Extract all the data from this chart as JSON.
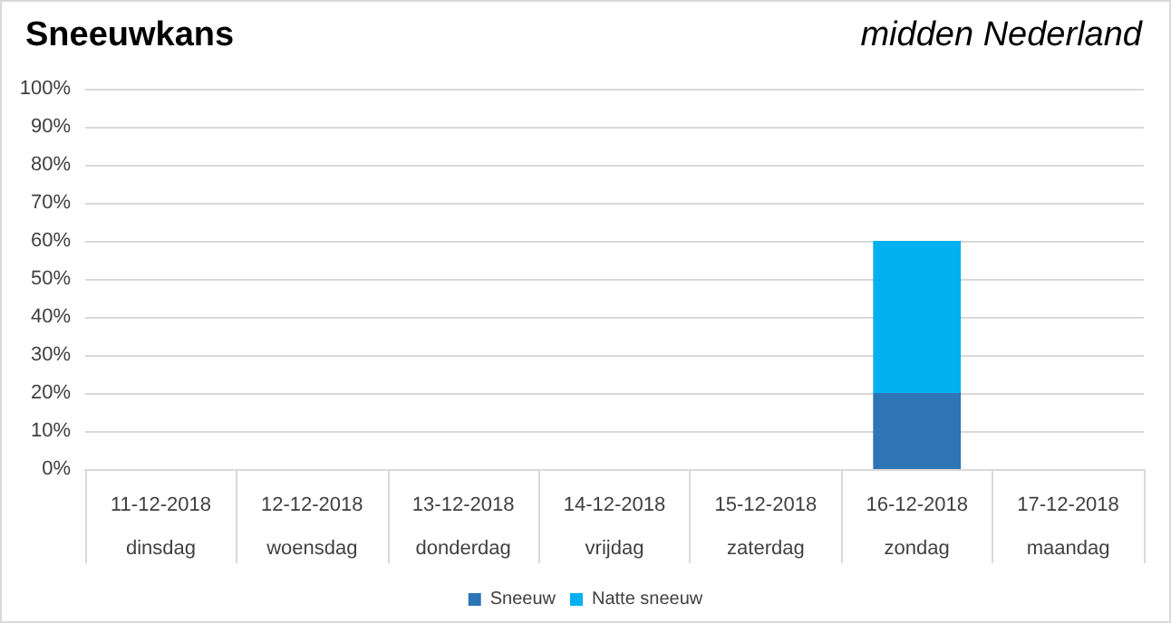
{
  "chart_data": {
    "type": "bar",
    "title": "Sneeuwkans",
    "subtitle": "midden Nederland",
    "categories": [
      "11-12-2018\ndinsdag",
      "12-12-2018\nwoensdag",
      "13-12-2018\ndonderdag",
      "14-12-2018\nvrijdag",
      "15-12-2018\nzaterdag",
      "16-12-2018\nzondag",
      "17-12-2018\nmaandag"
    ],
    "series": [
      {
        "name": "Sneeuw",
        "color": "#2e75b6",
        "values": [
          0,
          0,
          0,
          0,
          0,
          20,
          0
        ]
      },
      {
        "name": "Natte sneeuw",
        "color": "#00b0f0",
        "values": [
          0,
          0,
          0,
          0,
          0,
          40,
          0
        ]
      }
    ],
    "stacked": true,
    "ylim": [
      0,
      100
    ],
    "yticks": [
      {
        "value": 0,
        "label": "0%"
      },
      {
        "value": 10,
        "label": "10%"
      },
      {
        "value": 20,
        "label": "20%"
      },
      {
        "value": 30,
        "label": "30%"
      },
      {
        "value": 40,
        "label": "40%"
      },
      {
        "value": 50,
        "label": "50%"
      },
      {
        "value": 60,
        "label": "60%"
      },
      {
        "value": 70,
        "label": "70%"
      },
      {
        "value": 80,
        "label": "80%"
      },
      {
        "value": 90,
        "label": "90%"
      },
      {
        "value": 100,
        "label": "100%"
      }
    ],
    "grid": "y",
    "legend": "bottom"
  }
}
